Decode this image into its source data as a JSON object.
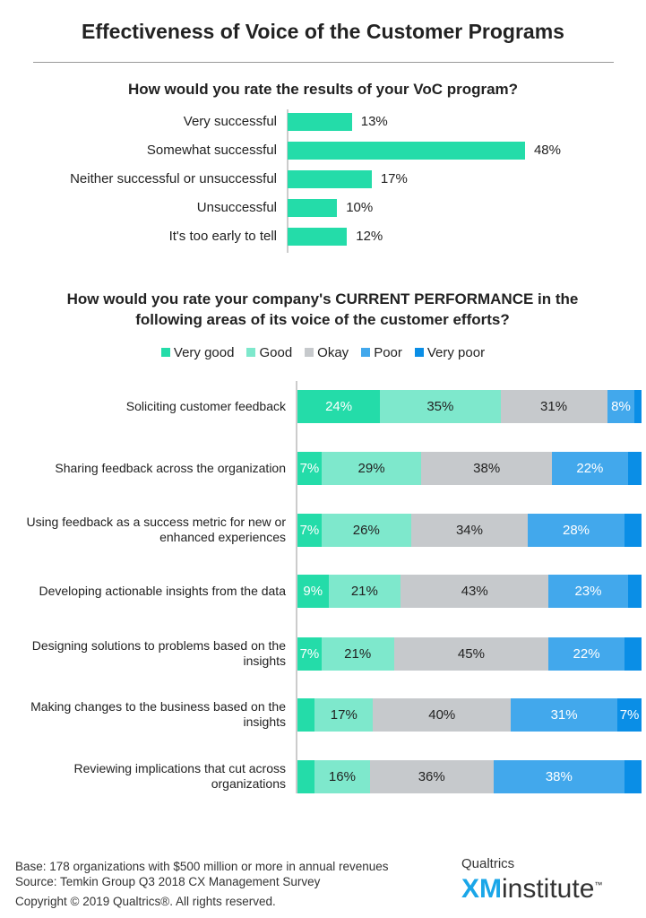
{
  "title": "Effectiveness of Voice of the Customer Programs",
  "footer": {
    "base": "Base: 178 organizations with $500 million or more in annual revenues",
    "source": "Source: Temkin Group Q3 2018 CX Management Survey",
    "copyright": "Copyright © 2019 Qualtrics®.  All rights reserved.",
    "logo_top": "Qualtrics",
    "logo_xm": "XM",
    "logo_rest": "institute",
    "logo_tm": "™"
  },
  "chart_data": [
    {
      "type": "bar",
      "orientation": "horizontal",
      "title": "How would you rate the results of your VoC program?",
      "categories": [
        "Very successful",
        "Somewhat successful",
        "Neither successful or unsuccessful",
        "Unsuccessful",
        "It's too early to tell"
      ],
      "values": [
        13,
        48,
        17,
        10,
        12
      ],
      "data_labels": [
        "13%",
        "48%",
        "17%",
        "10%",
        "12%"
      ],
      "color": "#24dca9"
    },
    {
      "type": "bar",
      "orientation": "horizontal",
      "stacked": true,
      "title": "How would you rate your company's CURRENT PERFORMANCE in the following areas of its voice of the customer efforts?",
      "legend_position": "top",
      "categories": [
        "Soliciting customer feedback",
        "Sharing feedback across the organization",
        "Using feedback as a success metric for new or enhanced experiences",
        "Developing actionable insights from the data",
        "Designing solutions to problems based on the insights",
        "Making changes to the business based on the insights",
        "Reviewing implications that cut across organizations"
      ],
      "series": [
        {
          "name": "Very good",
          "color": "#24dca9",
          "text": "#fff",
          "values": [
            24,
            7,
            7,
            9,
            7,
            5,
            5
          ],
          "labels": [
            "24%",
            "7%",
            "7%",
            "9%",
            "7%",
            "",
            ""
          ]
        },
        {
          "name": "Good",
          "color": "#7ee8cc",
          "text": "#222",
          "values": [
            35,
            29,
            26,
            21,
            21,
            17,
            16
          ],
          "labels": [
            "35%",
            "29%",
            "26%",
            "21%",
            "21%",
            "17%",
            "16%"
          ]
        },
        {
          "name": "Okay",
          "color": "#c6c9cc",
          "text": "#222",
          "values": [
            31,
            38,
            34,
            43,
            45,
            40,
            36
          ],
          "labels": [
            "31%",
            "38%",
            "34%",
            "43%",
            "45%",
            "40%",
            "36%"
          ]
        },
        {
          "name": "Poor",
          "color": "#42a8ec",
          "text": "#fff",
          "values": [
            8,
            22,
            28,
            23,
            22,
            31,
            38
          ],
          "labels": [
            "8%",
            "22%",
            "28%",
            "23%",
            "22%",
            "31%",
            "38%"
          ]
        },
        {
          "name": "Very poor",
          "color": "#0a8ee6",
          "text": "#fff",
          "values": [
            2,
            4,
            5,
            4,
            5,
            7,
            5
          ],
          "labels": [
            "",
            "",
            "",
            "",
            "",
            "7%",
            ""
          ]
        }
      ]
    }
  ]
}
